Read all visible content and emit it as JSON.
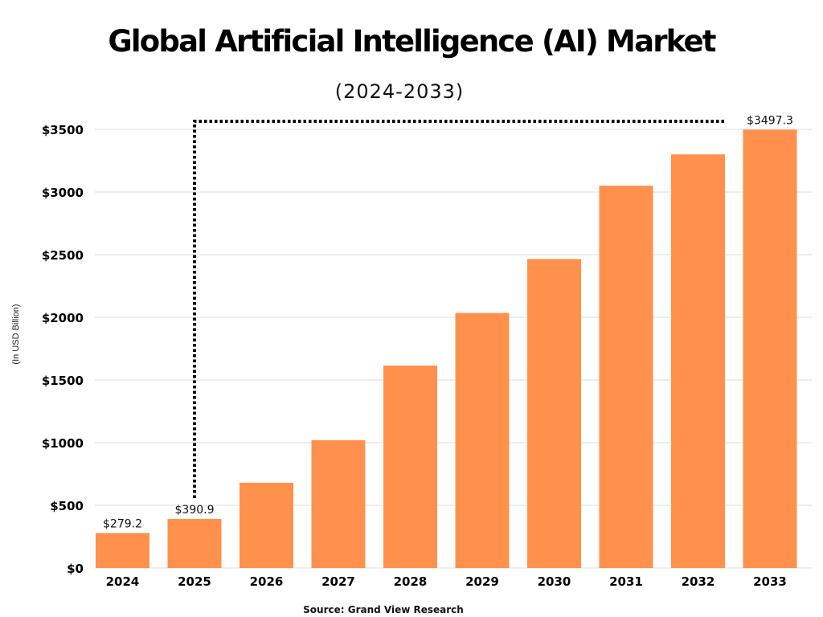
{
  "chart_data": {
    "type": "bar",
    "title": "Global Artificial Intelligence (AI) Market",
    "subtitle": "(2024-2033)",
    "xlabel": "",
    "ylabel": "(In USD Billion)",
    "source": "Source: Grand View Research",
    "categories": [
      "2024",
      "2025",
      "2026",
      "2027",
      "2028",
      "2029",
      "2030",
      "2031",
      "2032",
      "2033"
    ],
    "values": [
      279.2,
      390.9,
      680,
      1020,
      1615,
      2035,
      2465,
      3050,
      3300,
      3497.3
    ],
    "data_labels": [
      "$279.2",
      "$390.9",
      "",
      "",
      "",
      "",
      "",
      "",
      "",
      "$3497.3"
    ],
    "ylim": [
      0,
      3500
    ],
    "yticks": [
      0,
      500,
      1000,
      1500,
      2000,
      2500,
      3000,
      3500
    ],
    "ytick_labels": [
      "$0",
      "$500",
      "$1000",
      "$1500",
      "$2000",
      "$2500",
      "$3000",
      "$3500"
    ],
    "grid": true,
    "legend": "none",
    "bar_color": "#FF914D"
  }
}
